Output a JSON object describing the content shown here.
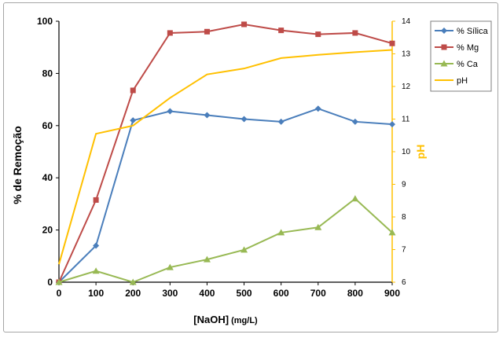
{
  "chart_data": {
    "type": "line",
    "x": [
      0,
      100,
      200,
      300,
      400,
      500,
      600,
      700,
      800,
      900
    ],
    "xlabel_main": "[NaOH]",
    "xlabel_unit": " (mg/L)",
    "ylabel": "% de Remoção",
    "y2label": "pH",
    "ylim": [
      0,
      100
    ],
    "y2lim": [
      6,
      14
    ],
    "xlim": [
      0,
      900
    ],
    "xticks": [
      "0",
      "100",
      "200",
      "300",
      "400",
      "500",
      "600",
      "700",
      "800",
      "900"
    ],
    "yticks": [
      "0",
      "20",
      "40",
      "60",
      "80",
      "100"
    ],
    "y2ticks": [
      "6",
      "7",
      "8",
      "9",
      "10",
      "11",
      "12",
      "13",
      "14"
    ],
    "grid": false,
    "legend_position": "top-right",
    "series": [
      {
        "name": "% Sílica",
        "axis": "left",
        "marker": "diamond",
        "color": "#4a7ebb",
        "values": [
          0,
          14,
          62,
          65.5,
          64,
          62.5,
          61.5,
          66.5,
          61.5,
          60.5
        ]
      },
      {
        "name": "% Mg",
        "axis": "left",
        "marker": "square",
        "color": "#be4b48",
        "values": [
          0,
          31.5,
          73.5,
          95.5,
          96,
          98.8,
          96.5,
          95,
          95.5,
          91.5
        ]
      },
      {
        "name": "% Ca",
        "axis": "left",
        "marker": "triangle",
        "color": "#98b954",
        "values": [
          0,
          4.3,
          0,
          5.7,
          8.7,
          12.4,
          19,
          21,
          32,
          19
        ]
      },
      {
        "name": "pH",
        "axis": "right",
        "marker": "none",
        "color": "#ffc000",
        "values": [
          6.55,
          10.55,
          10.8,
          11.65,
          12.37,
          12.55,
          12.87,
          12.97,
          13.05,
          13.12
        ]
      }
    ]
  }
}
